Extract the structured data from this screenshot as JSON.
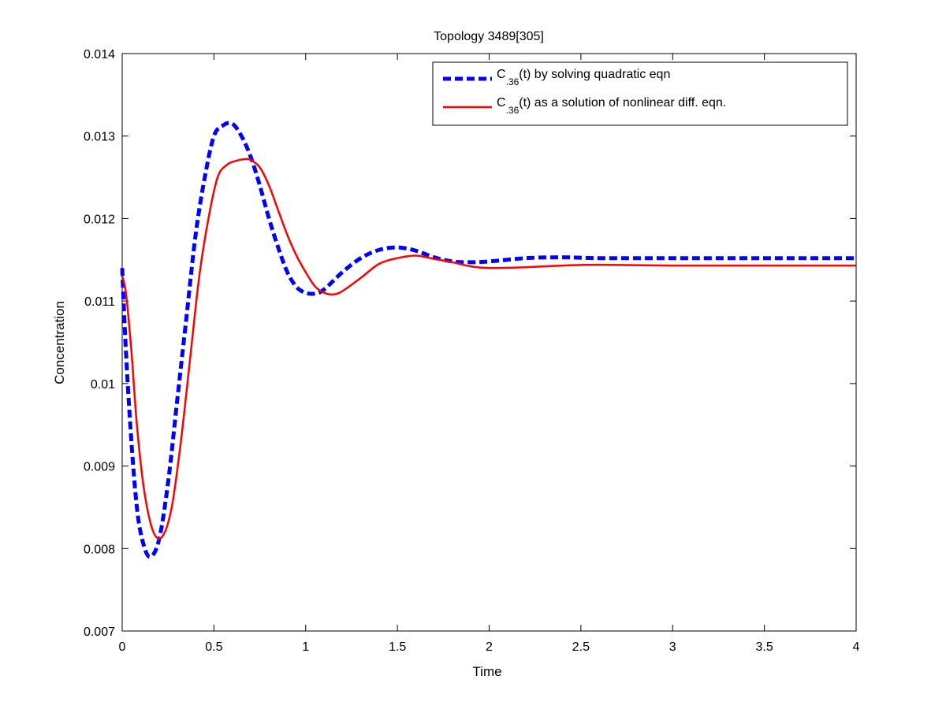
{
  "chart_data": {
    "type": "line",
    "title": "Topology 3489[305]",
    "xlabel": "Time",
    "ylabel": "Concentration",
    "xlim": [
      0,
      4
    ],
    "ylim": [
      0.007,
      0.014
    ],
    "xticks": [
      0,
      0.5,
      1,
      1.5,
      2,
      2.5,
      3,
      3.5,
      4
    ],
    "xtick_labels": [
      "0",
      "0.5",
      "1",
      "1.5",
      "2",
      "2.5",
      "3",
      "3.5",
      "4"
    ],
    "yticks": [
      0.007,
      0.008,
      0.009,
      0.01,
      0.011,
      0.012,
      0.013,
      0.014
    ],
    "ytick_labels": [
      "0.007",
      "0.008",
      "0.009",
      "0.01",
      "0.011",
      "0.012",
      "0.013",
      "0.014"
    ],
    "grid": false,
    "legend_position": "top-right",
    "series": [
      {
        "name_main": "C",
        "name_sub": ".36",
        "name_rest": "(t) by solving quadratic eqn",
        "color": "#0000ff",
        "style": "dashed",
        "x": [
          0,
          0.02,
          0.05,
          0.08,
          0.11,
          0.15,
          0.2,
          0.25,
          0.3,
          0.35,
          0.4,
          0.45,
          0.5,
          0.55,
          0.6,
          0.65,
          0.7,
          0.75,
          0.8,
          0.85,
          0.9,
          0.95,
          1.0,
          1.05,
          1.1,
          1.2,
          1.3,
          1.4,
          1.5,
          1.6,
          1.7,
          1.8,
          1.9,
          2.0,
          2.2,
          2.4,
          2.6,
          3.0,
          3.5,
          4.0
        ],
        "y": [
          0.0114,
          0.0104,
          0.0093,
          0.0085,
          0.0081,
          0.0079,
          0.0081,
          0.0088,
          0.0098,
          0.0108,
          0.0118,
          0.0125,
          0.013,
          0.01313,
          0.01315,
          0.013,
          0.01275,
          0.0124,
          0.012,
          0.01165,
          0.01135,
          0.01117,
          0.0111,
          0.01109,
          0.01114,
          0.01135,
          0.01152,
          0.01162,
          0.01165,
          0.01161,
          0.01153,
          0.01148,
          0.01147,
          0.01148,
          0.01152,
          0.01153,
          0.01152,
          0.01152,
          0.01152,
          0.01152
        ]
      },
      {
        "name_main": "C",
        "name_sub": ".36",
        "name_rest": "(t) as a solution of nonlinear diff. eqn.",
        "color": "#ff0000",
        "style": "solid",
        "x": [
          0,
          0.02,
          0.05,
          0.08,
          0.12,
          0.17,
          0.22,
          0.27,
          0.32,
          0.37,
          0.42,
          0.47,
          0.52,
          0.57,
          0.62,
          0.67,
          0.7,
          0.75,
          0.8,
          0.85,
          0.9,
          0.95,
          1.0,
          1.05,
          1.1,
          1.15,
          1.2,
          1.3,
          1.4,
          1.5,
          1.6,
          1.7,
          1.8,
          1.9,
          2.0,
          2.2,
          2.4,
          2.6,
          3.0,
          3.5,
          4.0
        ],
        "y": [
          0.0113,
          0.0111,
          0.0104,
          0.0095,
          0.0087,
          0.0082,
          0.00815,
          0.0085,
          0.0093,
          0.0103,
          0.0113,
          0.012,
          0.0125,
          0.01265,
          0.0127,
          0.01272,
          0.01271,
          0.01262,
          0.0124,
          0.0121,
          0.0118,
          0.01155,
          0.01135,
          0.01118,
          0.0111,
          0.01108,
          0.01112,
          0.01128,
          0.01145,
          0.01152,
          0.01155,
          0.01151,
          0.01147,
          0.01142,
          0.0114,
          0.01141,
          0.01143,
          0.01144,
          0.01143,
          0.01143,
          0.01143
        ]
      }
    ]
  }
}
